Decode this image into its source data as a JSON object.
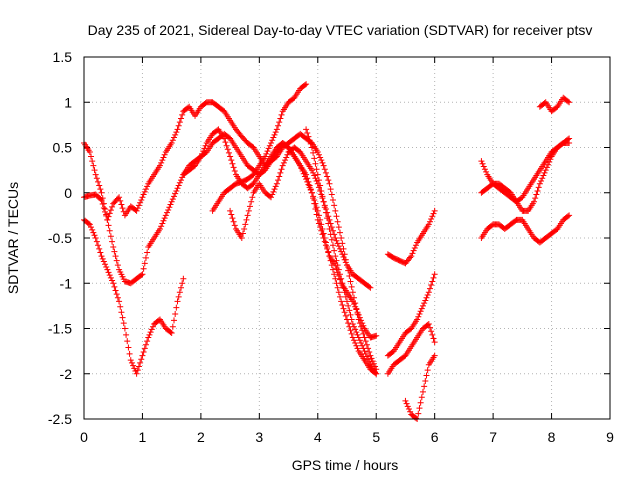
{
  "chart_data": {
    "type": "scatter",
    "title": "Day 235 of 2021, Sidereal Day-to-day VTEC variation (SDTVAR) for receiver ptsv",
    "xlabel": "GPS time / hours",
    "ylabel": "SDTVAR / TECUs",
    "xlim": [
      0,
      9
    ],
    "ylim": [
      -2.5,
      1.5
    ],
    "x_ticks": [
      0,
      1,
      2,
      3,
      4,
      5,
      6,
      7,
      8,
      9
    ],
    "x_tick_labels": [
      "0",
      "1",
      "2",
      "3",
      "4",
      "5",
      "6",
      "7",
      "8",
      "9"
    ],
    "y_ticks": [
      1.5,
      1,
      0.5,
      0,
      -0.5,
      -1,
      -1.5,
      -2,
      -2.5
    ],
    "y_tick_labels": [
      "1.5",
      "1",
      "0.5",
      "0",
      "-0.5",
      "-1",
      "-1.5",
      "-2",
      "-2.5"
    ],
    "grid": true,
    "legend": "none",
    "marker": "+",
    "color": "#ff0000",
    "series": [
      {
        "x": [
          0.0,
          0.1,
          0.2,
          0.3,
          0.4,
          0.5,
          0.6,
          0.7,
          0.8,
          0.9,
          1.0,
          1.1,
          1.2,
          1.3,
          1.4,
          1.5,
          1.6,
          1.7,
          1.8,
          1.9,
          2.0,
          2.1,
          2.2,
          2.3,
          2.4,
          2.5,
          2.6,
          2.7,
          2.8,
          2.9,
          3.0,
          3.1,
          3.2,
          3.3,
          3.4,
          3.5,
          3.6,
          3.7,
          3.8,
          3.9,
          4.0,
          4.1,
          4.2,
          4.3,
          4.4,
          4.5,
          4.6,
          4.7,
          4.8,
          4.9,
          5.0
        ],
        "y": [
          -0.05,
          -0.03,
          -0.02,
          -0.08,
          -0.3,
          -0.12,
          -0.05,
          -0.25,
          -0.15,
          -0.2,
          -0.05,
          0.1,
          0.2,
          0.3,
          0.45,
          0.55,
          0.7,
          0.9,
          0.95,
          0.85,
          0.95,
          1.0,
          1.0,
          0.95,
          0.9,
          0.8,
          0.7,
          0.62,
          0.55,
          0.5,
          0.4,
          0.3,
          0.35,
          0.45,
          0.55,
          0.5,
          0.4,
          0.3,
          0.2,
          0.0,
          -0.3,
          -0.5,
          -0.7,
          -0.8,
          -1.0,
          -1.1,
          -1.2,
          -1.35,
          -1.5,
          -1.6,
          -1.58
        ]
      },
      {
        "x": [
          0.0,
          0.1,
          0.2,
          0.3,
          0.4,
          0.5,
          0.6,
          0.7,
          0.8,
          0.9,
          1.0,
          1.1,
          1.2,
          1.3,
          1.4,
          1.5,
          1.6,
          1.7,
          1.8,
          1.9,
          2.0,
          2.1,
          2.2,
          2.3,
          2.4,
          2.5,
          2.6,
          2.7,
          2.8,
          2.9,
          3.0,
          3.1,
          3.2,
          3.3,
          3.4,
          3.5,
          3.6,
          3.7,
          3.8,
          3.9,
          4.0,
          4.1,
          4.2,
          4.3,
          4.4,
          4.5,
          4.6,
          4.7,
          4.8,
          4.9,
          5.0
        ],
        "y": [
          0.55,
          0.45,
          0.2,
          0.0,
          -0.3,
          -0.6,
          -0.85,
          -0.98,
          -1.0,
          -0.95,
          -0.9,
          -0.6,
          -0.5,
          -0.4,
          -0.25,
          -0.1,
          0.05,
          0.2,
          0.3,
          0.35,
          0.4,
          0.45,
          0.55,
          0.6,
          0.65,
          0.6,
          0.5,
          0.4,
          0.3,
          0.25,
          0.2,
          0.25,
          0.35,
          0.4,
          0.5,
          0.55,
          0.6,
          0.65,
          0.6,
          0.55,
          0.45,
          0.3,
          0.1,
          -0.2,
          -0.5,
          -0.8,
          -1.1,
          -1.4,
          -1.6,
          -1.8,
          -1.95
        ]
      },
      {
        "x": [
          0.0,
          0.1,
          0.2,
          0.3,
          0.4,
          0.5,
          0.6,
          0.7,
          0.8,
          0.9,
          1.0,
          1.1,
          1.2,
          1.3,
          1.4,
          1.5,
          1.6,
          1.7
        ],
        "y": [
          -0.3,
          -0.35,
          -0.5,
          -0.7,
          -0.85,
          -1.0,
          -1.2,
          -1.5,
          -1.85,
          -2.0,
          -1.8,
          -1.6,
          -1.45,
          -1.4,
          -1.5,
          -1.55,
          -1.2,
          -0.95
        ]
      },
      {
        "x": [
          1.7,
          1.8,
          1.9,
          2.0,
          2.1,
          2.2,
          2.3,
          2.4,
          2.5,
          2.6,
          2.7,
          2.8,
          2.9,
          3.0,
          3.1,
          3.2,
          3.3,
          3.4,
          3.5,
          3.6,
          3.7,
          3.8,
          3.9,
          4.0,
          4.1,
          4.2,
          4.3,
          4.4,
          4.5,
          4.6,
          4.7,
          4.8,
          4.9,
          5.0
        ],
        "y": [
          0.2,
          0.25,
          0.3,
          0.4,
          0.55,
          0.65,
          0.7,
          0.6,
          0.4,
          0.2,
          0.1,
          0.05,
          0.1,
          0.2,
          0.3,
          0.4,
          0.5,
          0.55,
          0.5,
          0.4,
          0.3,
          0.15,
          0.0,
          -0.2,
          -0.45,
          -0.7,
          -0.95,
          -1.2,
          -1.4,
          -1.6,
          -1.75,
          -1.85,
          -1.95,
          -2.0
        ]
      },
      {
        "x": [
          2.2,
          2.3,
          2.4,
          2.5,
          2.6,
          2.7,
          2.8,
          2.9,
          3.0,
          3.1,
          3.2,
          3.3,
          3.4,
          3.5,
          3.6,
          3.7,
          3.8
        ],
        "y": [
          -0.2,
          -0.1,
          0.0,
          0.05,
          0.1,
          0.12,
          0.15,
          0.2,
          0.3,
          0.4,
          0.55,
          0.7,
          0.9,
          1.0,
          1.05,
          1.15,
          1.2
        ]
      },
      {
        "x": [
          3.8,
          3.9,
          4.0,
          4.1,
          4.2,
          4.3,
          4.4,
          4.5,
          4.6,
          4.7,
          4.8,
          4.9,
          5.0
        ],
        "y": [
          0.7,
          0.5,
          0.2,
          -0.1,
          -0.4,
          -0.7,
          -0.95,
          -1.2,
          -1.45,
          -1.6,
          -1.75,
          -1.9,
          -2.0
        ]
      },
      {
        "x": [
          2.5,
          2.6,
          2.7,
          2.8,
          2.9,
          3.0,
          3.1,
          3.2,
          3.3,
          3.4,
          3.5,
          3.6,
          3.7,
          3.8,
          3.9,
          4.0,
          4.1,
          4.2,
          4.3,
          4.4,
          4.5,
          4.6,
          4.7,
          4.8,
          4.9
        ],
        "y": [
          -0.2,
          -0.4,
          -0.5,
          -0.25,
          0.0,
          0.1,
          0.0,
          -0.05,
          0.1,
          0.3,
          0.45,
          0.5,
          0.45,
          0.35,
          0.25,
          0.1,
          -0.1,
          -0.3,
          -0.5,
          -0.65,
          -0.8,
          -0.9,
          -0.95,
          -1.0,
          -1.05
        ]
      },
      {
        "x": [
          5.2,
          5.3,
          5.4,
          5.5,
          5.6,
          5.7,
          5.8,
          5.9,
          6.0
        ],
        "y": [
          -0.68,
          -0.72,
          -0.75,
          -0.78,
          -0.7,
          -0.55,
          -0.45,
          -0.35,
          -0.2
        ]
      },
      {
        "x": [
          5.2,
          5.3,
          5.4,
          5.5,
          5.6,
          5.7,
          5.8,
          5.9,
          6.0
        ],
        "y": [
          -1.8,
          -1.75,
          -1.65,
          -1.55,
          -1.5,
          -1.4,
          -1.25,
          -1.1,
          -0.9
        ]
      },
      {
        "x": [
          5.2,
          5.3,
          5.4,
          5.5,
          5.6,
          5.7,
          5.8,
          5.9,
          6.0
        ],
        "y": [
          -2.0,
          -1.9,
          -1.85,
          -1.8,
          -1.7,
          -1.6,
          -1.5,
          -1.45,
          -1.65
        ]
      },
      {
        "x": [
          5.5,
          5.6,
          5.7,
          5.8,
          5.9,
          6.0
        ],
        "y": [
          -2.3,
          -2.45,
          -2.5,
          -2.2,
          -1.9,
          -1.8
        ]
      },
      {
        "x": [
          6.8,
          6.9,
          7.0,
          7.1,
          7.2,
          7.3,
          7.4,
          7.5,
          7.6,
          7.7,
          7.8,
          7.9,
          8.0,
          8.1,
          8.2,
          8.3
        ],
        "y": [
          0.35,
          0.2,
          0.1,
          0.05,
          0.0,
          -0.05,
          -0.1,
          -0.05,
          0.05,
          0.15,
          0.25,
          0.35,
          0.45,
          0.5,
          0.55,
          0.6
        ]
      },
      {
        "x": [
          6.8,
          6.9,
          7.0,
          7.1,
          7.2,
          7.3,
          7.4,
          7.5,
          7.6,
          7.7,
          7.8,
          7.9,
          8.0,
          8.1,
          8.2,
          8.3
        ],
        "y": [
          -0.5,
          -0.4,
          -0.35,
          -0.35,
          -0.4,
          -0.35,
          -0.3,
          -0.3,
          -0.4,
          -0.5,
          -0.55,
          -0.5,
          -0.45,
          -0.4,
          -0.3,
          -0.25
        ]
      },
      {
        "x": [
          6.8,
          6.9,
          7.0,
          7.1,
          7.2,
          7.3,
          7.4,
          7.5,
          7.6,
          7.7,
          7.8,
          7.9,
          8.0,
          8.1,
          8.2,
          8.3
        ],
        "y": [
          0.0,
          0.05,
          0.1,
          0.1,
          0.05,
          0.0,
          -0.1,
          -0.2,
          -0.2,
          -0.1,
          0.1,
          0.25,
          0.4,
          0.5,
          0.55,
          0.55
        ]
      },
      {
        "x": [
          7.8,
          7.9,
          8.0,
          8.1,
          8.2,
          8.3
        ],
        "y": [
          0.95,
          1.0,
          0.9,
          0.95,
          1.05,
          1.0
        ]
      }
    ]
  }
}
